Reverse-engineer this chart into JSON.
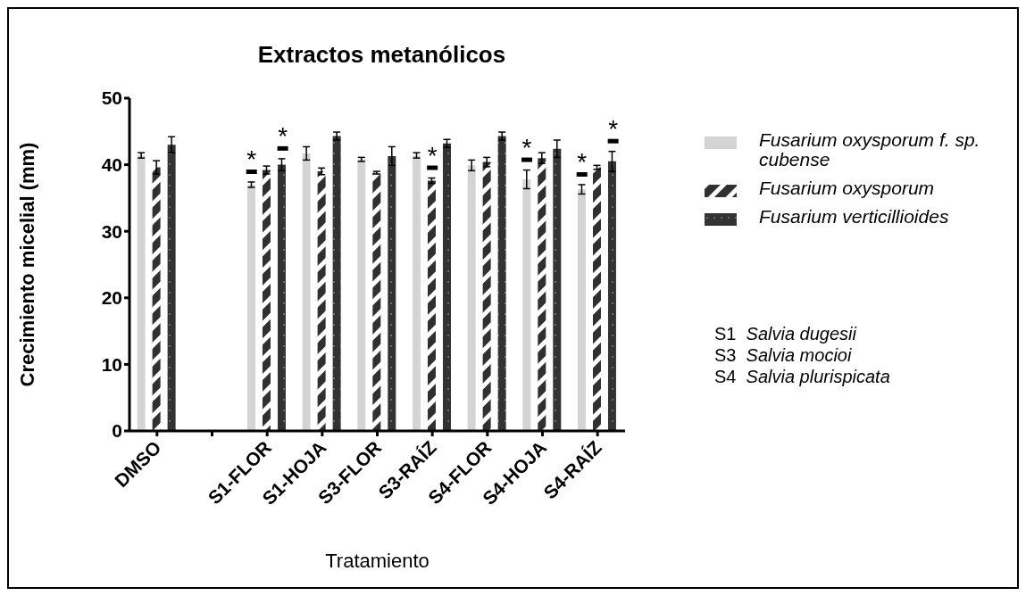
{
  "chart_data": {
    "type": "bar",
    "title": "Extractos metanólicos",
    "xlabel": "Tratamiento",
    "ylabel": "Crecimiento micelial (mm)",
    "categories": [
      "DMSO",
      null,
      "S1-FLOR",
      "S1-HOJA",
      "S3-FLOR",
      "S3-RAÍZ",
      "S4-FLOR",
      "S4-HOJA",
      "S4-RAÍZ"
    ],
    "series": [
      {
        "name": "Fusarium oxysporum f. sp. cubense",
        "color": "#d4d4d4",
        "values": [
          41.4,
          null,
          37.0,
          41.7,
          40.8,
          41.4,
          39.9,
          37.8,
          36.3
        ],
        "errors": [
          0.4,
          null,
          0.4,
          1.0,
          0.3,
          0.4,
          0.8,
          1.4,
          0.7
        ]
      },
      {
        "name": "Fusarium oxysporum",
        "color": "#303030",
        "values": [
          39.6,
          null,
          39.2,
          39.0,
          38.8,
          37.6,
          40.4,
          41.0,
          39.6
        ],
        "errors": [
          1.0,
          null,
          0.6,
          0.5,
          0.2,
          0.4,
          0.7,
          0.8,
          0.3
        ]
      },
      {
        "name": "Fusarium verticillioides",
        "color": "#333333",
        "values": [
          43.0,
          null,
          40.0,
          44.3,
          41.3,
          43.2,
          44.3,
          42.4,
          40.5
        ],
        "errors": [
          1.2,
          null,
          0.9,
          0.6,
          1.4,
          0.6,
          0.6,
          1.3,
          1.5
        ]
      }
    ],
    "ylim": [
      0,
      50
    ],
    "yticks": [
      0,
      10,
      20,
      30,
      40,
      50
    ],
    "legend": "right",
    "annotations": [
      {
        "text": "*",
        "x": "S1-FLOR",
        "y": 37.0
      },
      {
        "text": "*",
        "x": "S1-FLOR",
        "y": 40.0
      },
      {
        "text": "*",
        "x": "S3-RAÍZ",
        "y": 37.6
      },
      {
        "text": "*",
        "x": "S4-HOJA",
        "y": 37.8
      },
      {
        "text": "*",
        "x": "S4-RAÍZ",
        "y": 36.3
      },
      {
        "text": "*",
        "x": "S4-RAÍZ",
        "y": 40.5
      },
      "S1 Salvia dugesii",
      "S3 Salvia mocioi",
      "S4 Salvia plurispicata"
    ]
  }
}
